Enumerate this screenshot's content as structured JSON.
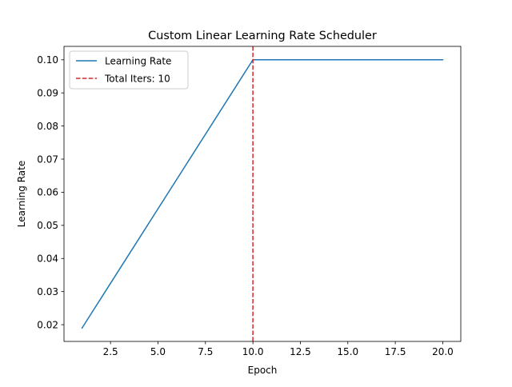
{
  "chart_data": {
    "type": "line",
    "title": "Custom Linear Learning Rate Scheduler",
    "xlabel": "Epoch",
    "ylabel": "Learning Rate",
    "xlim": [
      0.05,
      20.95
    ],
    "ylim": [
      0.01495,
      0.10405
    ],
    "x_ticks": [
      2.5,
      5.0,
      7.5,
      10.0,
      12.5,
      15.0,
      17.5,
      20.0
    ],
    "x_tick_labels": [
      "2.5",
      "5.0",
      "7.5",
      "10.0",
      "12.5",
      "15.0",
      "17.5",
      "20.0"
    ],
    "y_ticks": [
      0.02,
      0.03,
      0.04,
      0.05,
      0.06,
      0.07,
      0.08,
      0.09,
      0.1
    ],
    "y_tick_labels": [
      "0.02",
      "0.03",
      "0.04",
      "0.05",
      "0.06",
      "0.07",
      "0.08",
      "0.09",
      "0.10"
    ],
    "grid": false,
    "legend_position": "top-left",
    "series": [
      {
        "name": "Learning Rate",
        "color": "#1f77b4",
        "style": "solid",
        "x": [
          1,
          2,
          3,
          4,
          5,
          6,
          7,
          8,
          9,
          10,
          11,
          12,
          13,
          14,
          15,
          16,
          17,
          18,
          19,
          20
        ],
        "y": [
          0.019,
          0.028,
          0.037,
          0.046,
          0.055,
          0.064,
          0.073,
          0.082,
          0.091,
          0.1,
          0.1,
          0.1,
          0.1,
          0.1,
          0.1,
          0.1,
          0.1,
          0.1,
          0.1,
          0.1
        ]
      }
    ],
    "vlines": [
      {
        "name": "Total Iters: 10",
        "x": 10,
        "color": "#d62728",
        "style": "dashed"
      }
    ]
  }
}
